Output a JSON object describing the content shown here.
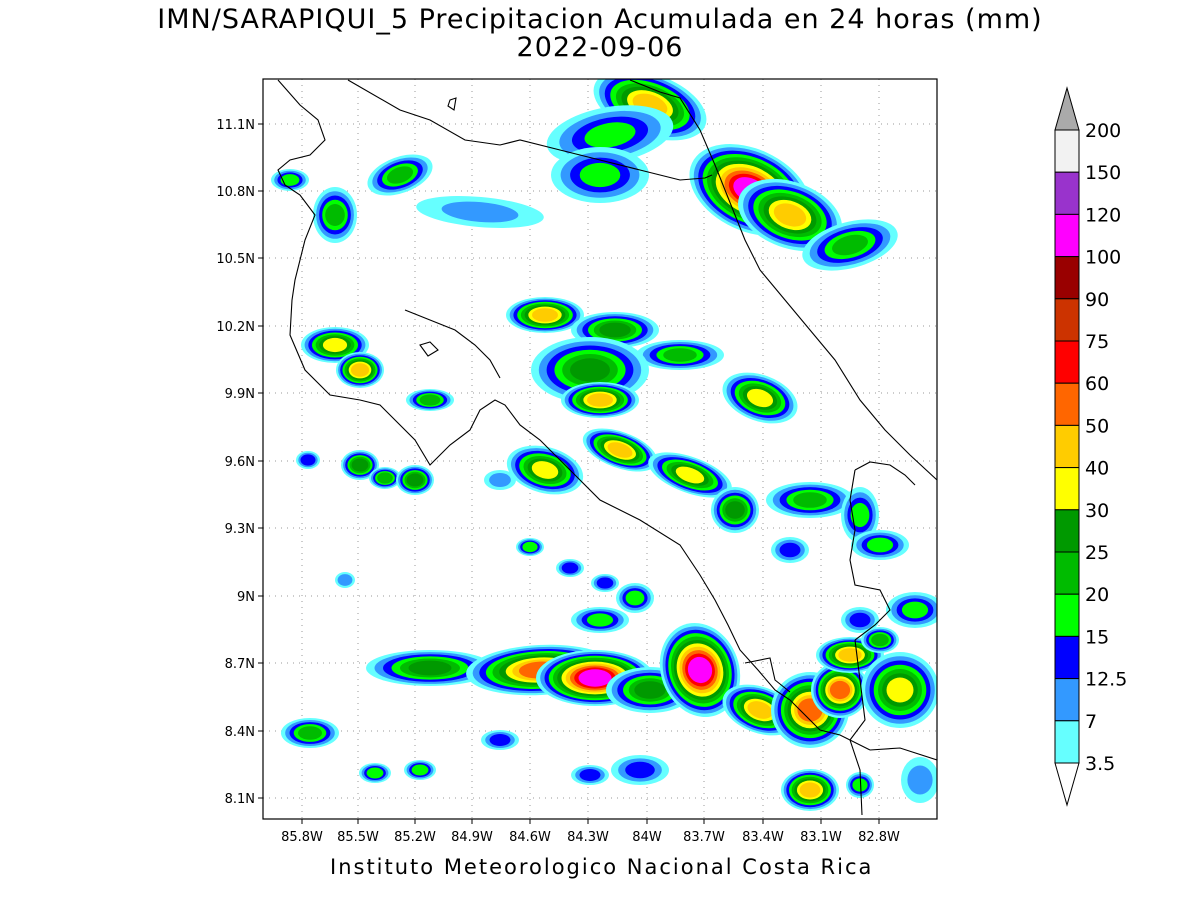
{
  "title": "IMN/SARAPIQUI_5 Precipitacion Acumulada en 24 horas (mm)",
  "date": "2022-09-06",
  "footer": "Instituto Meteorologico Nacional Costa Rica",
  "axes": {
    "lat_labels": [
      "11.1N",
      "10.8N",
      "10.5N",
      "10.2N",
      "9.9N",
      "9.6N",
      "9.3N",
      "9N",
      "8.7N",
      "8.4N",
      "8.1N"
    ],
    "lon_labels": [
      "85.8W",
      "85.5W",
      "85.2W",
      "84.9W",
      "84.6W",
      "84.3W",
      "84W",
      "83.7W",
      "83.4W",
      "83.1W",
      "82.8W"
    ]
  },
  "colorbar": {
    "unit": "mm",
    "labels": [
      "200",
      "150",
      "120",
      "100",
      "90",
      "75",
      "60",
      "50",
      "40",
      "30",
      "25",
      "20",
      "15",
      "12.5",
      "7",
      "3.5"
    ],
    "colors_top_to_bottom": [
      "#f2f2f2",
      "#9933cc",
      "#ff00ff",
      "#990000",
      "#cc3300",
      "#ff0000",
      "#ff6600",
      "#ffcc00",
      "#ffff00",
      "#009900",
      "#00bb00",
      "#00ff00",
      "#0000ff",
      "#3399ff",
      "#66ffff"
    ]
  }
}
